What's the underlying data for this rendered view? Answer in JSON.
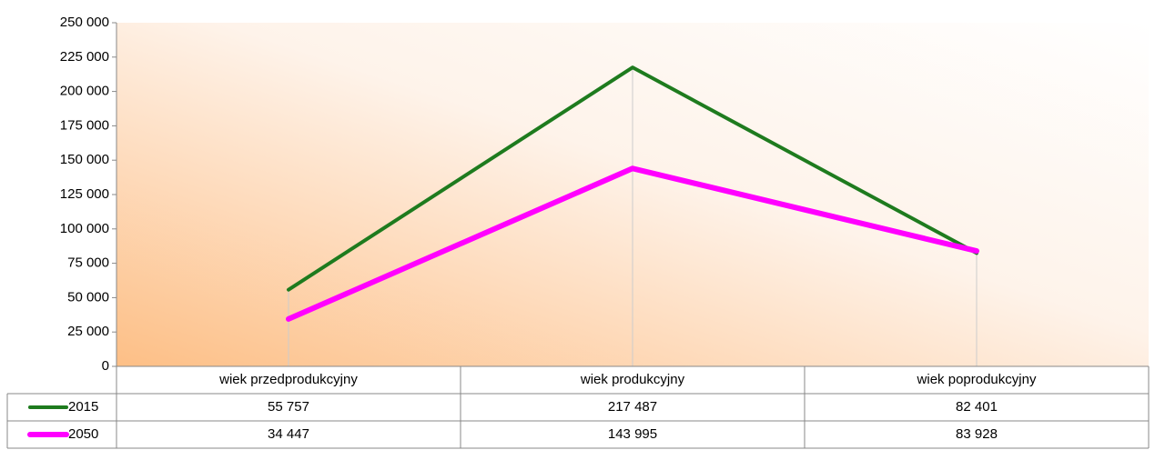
{
  "chart_data": {
    "type": "line",
    "categories": [
      "wiek przedprodukcyjny",
      "wiek produkcyjny",
      "wiek poprodukcyjny"
    ],
    "series": [
      {
        "name": "2015",
        "color": "#1e7b1e",
        "values": [
          55757,
          217487,
          82401
        ],
        "value_labels": [
          "55 757",
          "217 487",
          "82 401"
        ]
      },
      {
        "name": "2050",
        "color": "#ff00ff",
        "values": [
          34447,
          143995,
          83928
        ],
        "value_labels": [
          "34 447",
          "143 995",
          "83 928"
        ]
      }
    ],
    "ylim": [
      0,
      250000
    ],
    "yticks": [
      0,
      {
        "value": 25000,
        "label": "25 000"
      },
      {
        "value": 50000,
        "label": "50 000"
      },
      {
        "value": 75000,
        "label": "75 000"
      },
      {
        "value": 100000,
        "label": "100 000"
      },
      {
        "value": 125000,
        "label": "125 000"
      },
      {
        "value": 150000,
        "label": "150 000"
      },
      {
        "value": 175000,
        "label": "175 000"
      },
      {
        "value": 200000,
        "label": "200 000"
      },
      {
        "value": 225000,
        "label": "225 000"
      },
      {
        "value": 250000,
        "label": "250 000"
      }
    ],
    "data_table": true
  }
}
